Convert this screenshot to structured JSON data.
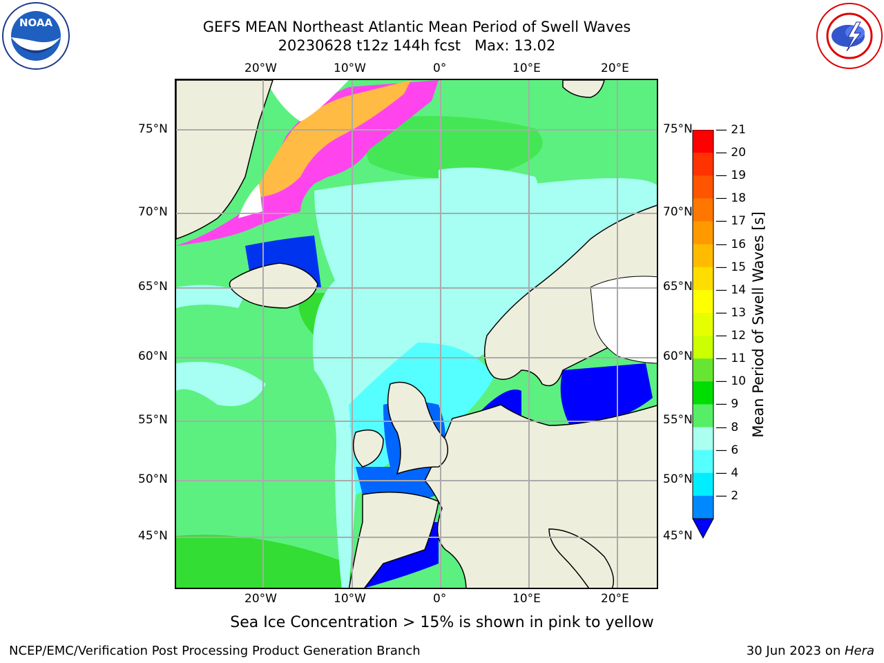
{
  "title": {
    "line1": "GEFS MEAN Northeast Atlantic Mean Period of Swell Waves",
    "line2": "20230628 t12z 144h fcst   Max: 13.02"
  },
  "axes": {
    "lon_top": [
      "20°W",
      "10°W",
      "0°",
      "10°E",
      "20°E"
    ],
    "lon_bottom": [
      "20°W",
      "10°W",
      "0°",
      "10°E",
      "20°E"
    ],
    "lat_left": [
      "75°N",
      "70°N",
      "65°N",
      "60°N",
      "55°N",
      "50°N",
      "45°N"
    ],
    "lat_right": [
      "75°N",
      "70°N",
      "65°N",
      "60°N",
      "55°N",
      "50°N",
      "45°N"
    ]
  },
  "colorbar": {
    "label": "Mean Period of Swell Waves [s]",
    "ticks": [
      "21",
      "20",
      "19",
      "18",
      "17",
      "16",
      "15",
      "14",
      "13",
      "12",
      "11",
      "10",
      "9",
      "8",
      "6",
      "4",
      "2"
    ],
    "colors": [
      "#ff0000",
      "#ff3300",
      "#ff5500",
      "#ff7700",
      "#ff9900",
      "#ffbb00",
      "#ffdd00",
      "#ffff00",
      "#e6ff00",
      "#ccff00",
      "#66e633",
      "#00dd00",
      "#55ee66",
      "#aaffee",
      "#55ffff",
      "#00eeff",
      "#0088ff"
    ],
    "extend_color": "#0000ff"
  },
  "colors": {
    "land": "#eeeedd",
    "ocean_main": "#5cf080",
    "ocean_light": "#a6fff2",
    "ocean_cyan": "#55ffff",
    "ocean_blue": "#0033ee",
    "ice_pink": "#ff44ee",
    "ice_orange": "#ffbb44",
    "grid": "#aaaaaa"
  },
  "logos": {
    "left": "NOAA",
    "right": "NATIONAL WEATHER SERVICE"
  },
  "note": "Sea Ice Concentration > 15% is shown in pink to yellow",
  "footer": {
    "left": "NCEP/EMC/Verification Post Processing Product Generation Branch",
    "right_prefix": "30 Jun 2023 on ",
    "right_host": "Hera"
  }
}
